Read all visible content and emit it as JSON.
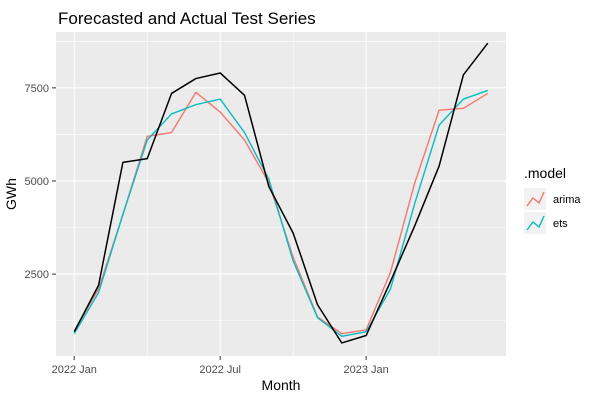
{
  "chart_data": {
    "type": "line",
    "title": "Forecasted and Actual Test Series",
    "xlabel": "Month",
    "ylabel": "GWh",
    "x_tick_labels": [
      "2022 Jan",
      "2022 Jul",
      "2023 Jan"
    ],
    "y_ticks": [
      2500,
      5000,
      7500
    ],
    "y_tick_labels": [
      "2500",
      "5000",
      "7500"
    ],
    "ylim": [
      300,
      9000
    ],
    "grid": true,
    "legend_title": ".model",
    "legend_position": "right",
    "x": [
      "2022 Jan",
      "2022 Feb",
      "2022 Mar",
      "2022 Apr",
      "2022 May",
      "2022 Jun",
      "2022 Jul",
      "2022 Aug",
      "2022 Sep",
      "2022 Oct",
      "2022 Nov",
      "2022 Dec",
      "2023 Jan",
      "2023 Feb",
      "2023 Mar",
      "2023 Apr",
      "2023 May",
      "2023 Jun"
    ],
    "actual": [
      950,
      2200,
      5500,
      5600,
      7350,
      7750,
      7900,
      7300,
      4850,
      3600,
      1680,
      650,
      850,
      2300,
      3800,
      5400,
      7850,
      8700
    ],
    "series": [
      {
        "name": "arima",
        "color": "#F8766D",
        "values": [
          980,
          2100,
          4100,
          6200,
          6300,
          7380,
          6850,
          6100,
          4950,
          2950,
          1350,
          900,
          1000,
          2550,
          4950,
          6900,
          6950,
          7350
        ]
      },
      {
        "name": "ets",
        "color": "#00BFC4",
        "values": [
          900,
          2000,
          4100,
          6100,
          6800,
          7050,
          7200,
          6300,
          5050,
          2850,
          1330,
          830,
          950,
          2100,
          4400,
          6500,
          7200,
          7430
        ]
      }
    ],
    "actual_color": "#000000"
  }
}
